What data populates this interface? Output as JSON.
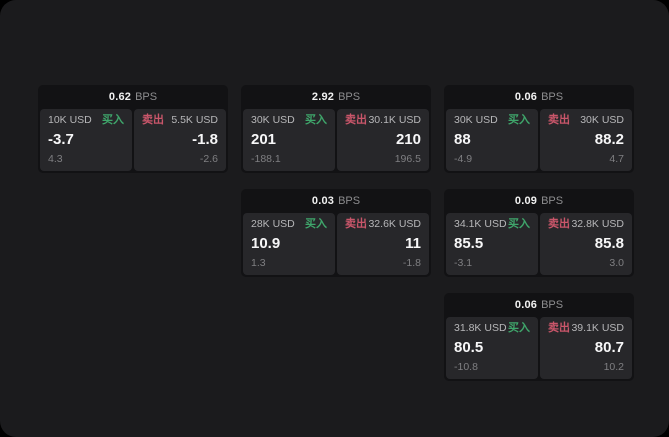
{
  "labels": {
    "buy": "买入",
    "sell": "卖出",
    "bps_unit": "BPS"
  },
  "colors": {
    "background": "#1b1b1d",
    "card": "#121214",
    "panel": "#27272a",
    "buy_green": "#3fa66b",
    "sell_red": "#c9566a"
  },
  "cards": [
    {
      "bps": "0.62",
      "col": 1,
      "row": 1,
      "buy": {
        "size": "10K USD",
        "price": "-3.7",
        "delta": "4.3"
      },
      "sell": {
        "size": "5.5K USD",
        "price": "-1.8",
        "delta": "-2.6"
      }
    },
    {
      "bps": "2.92",
      "col": 2,
      "row": 1,
      "buy": {
        "size": "30K USD",
        "price": "201",
        "delta": "-188.1"
      },
      "sell": {
        "size": "30.1K USD",
        "price": "210",
        "delta": "196.5"
      }
    },
    {
      "bps": "0.06",
      "col": 3,
      "row": 1,
      "buy": {
        "size": "30K USD",
        "price": "88",
        "delta": "-4.9"
      },
      "sell": {
        "size": "30K USD",
        "price": "88.2",
        "delta": "4.7"
      }
    },
    {
      "bps": "0.03",
      "col": 2,
      "row": 2,
      "buy": {
        "size": "28K USD",
        "price": "10.9",
        "delta": "1.3"
      },
      "sell": {
        "size": "32.6K USD",
        "price": "11",
        "delta": "-1.8"
      }
    },
    {
      "bps": "0.09",
      "col": 3,
      "row": 2,
      "buy": {
        "size": "34.1K USD",
        "price": "85.5",
        "delta": "-3.1"
      },
      "sell": {
        "size": "32.8K USD",
        "price": "85.8",
        "delta": "3.0"
      }
    },
    {
      "bps": "0.06",
      "col": 3,
      "row": 3,
      "buy": {
        "size": "31.8K USD",
        "price": "80.5",
        "delta": "-10.8"
      },
      "sell": {
        "size": "39.1K USD",
        "price": "80.7",
        "delta": "10.2"
      }
    }
  ]
}
